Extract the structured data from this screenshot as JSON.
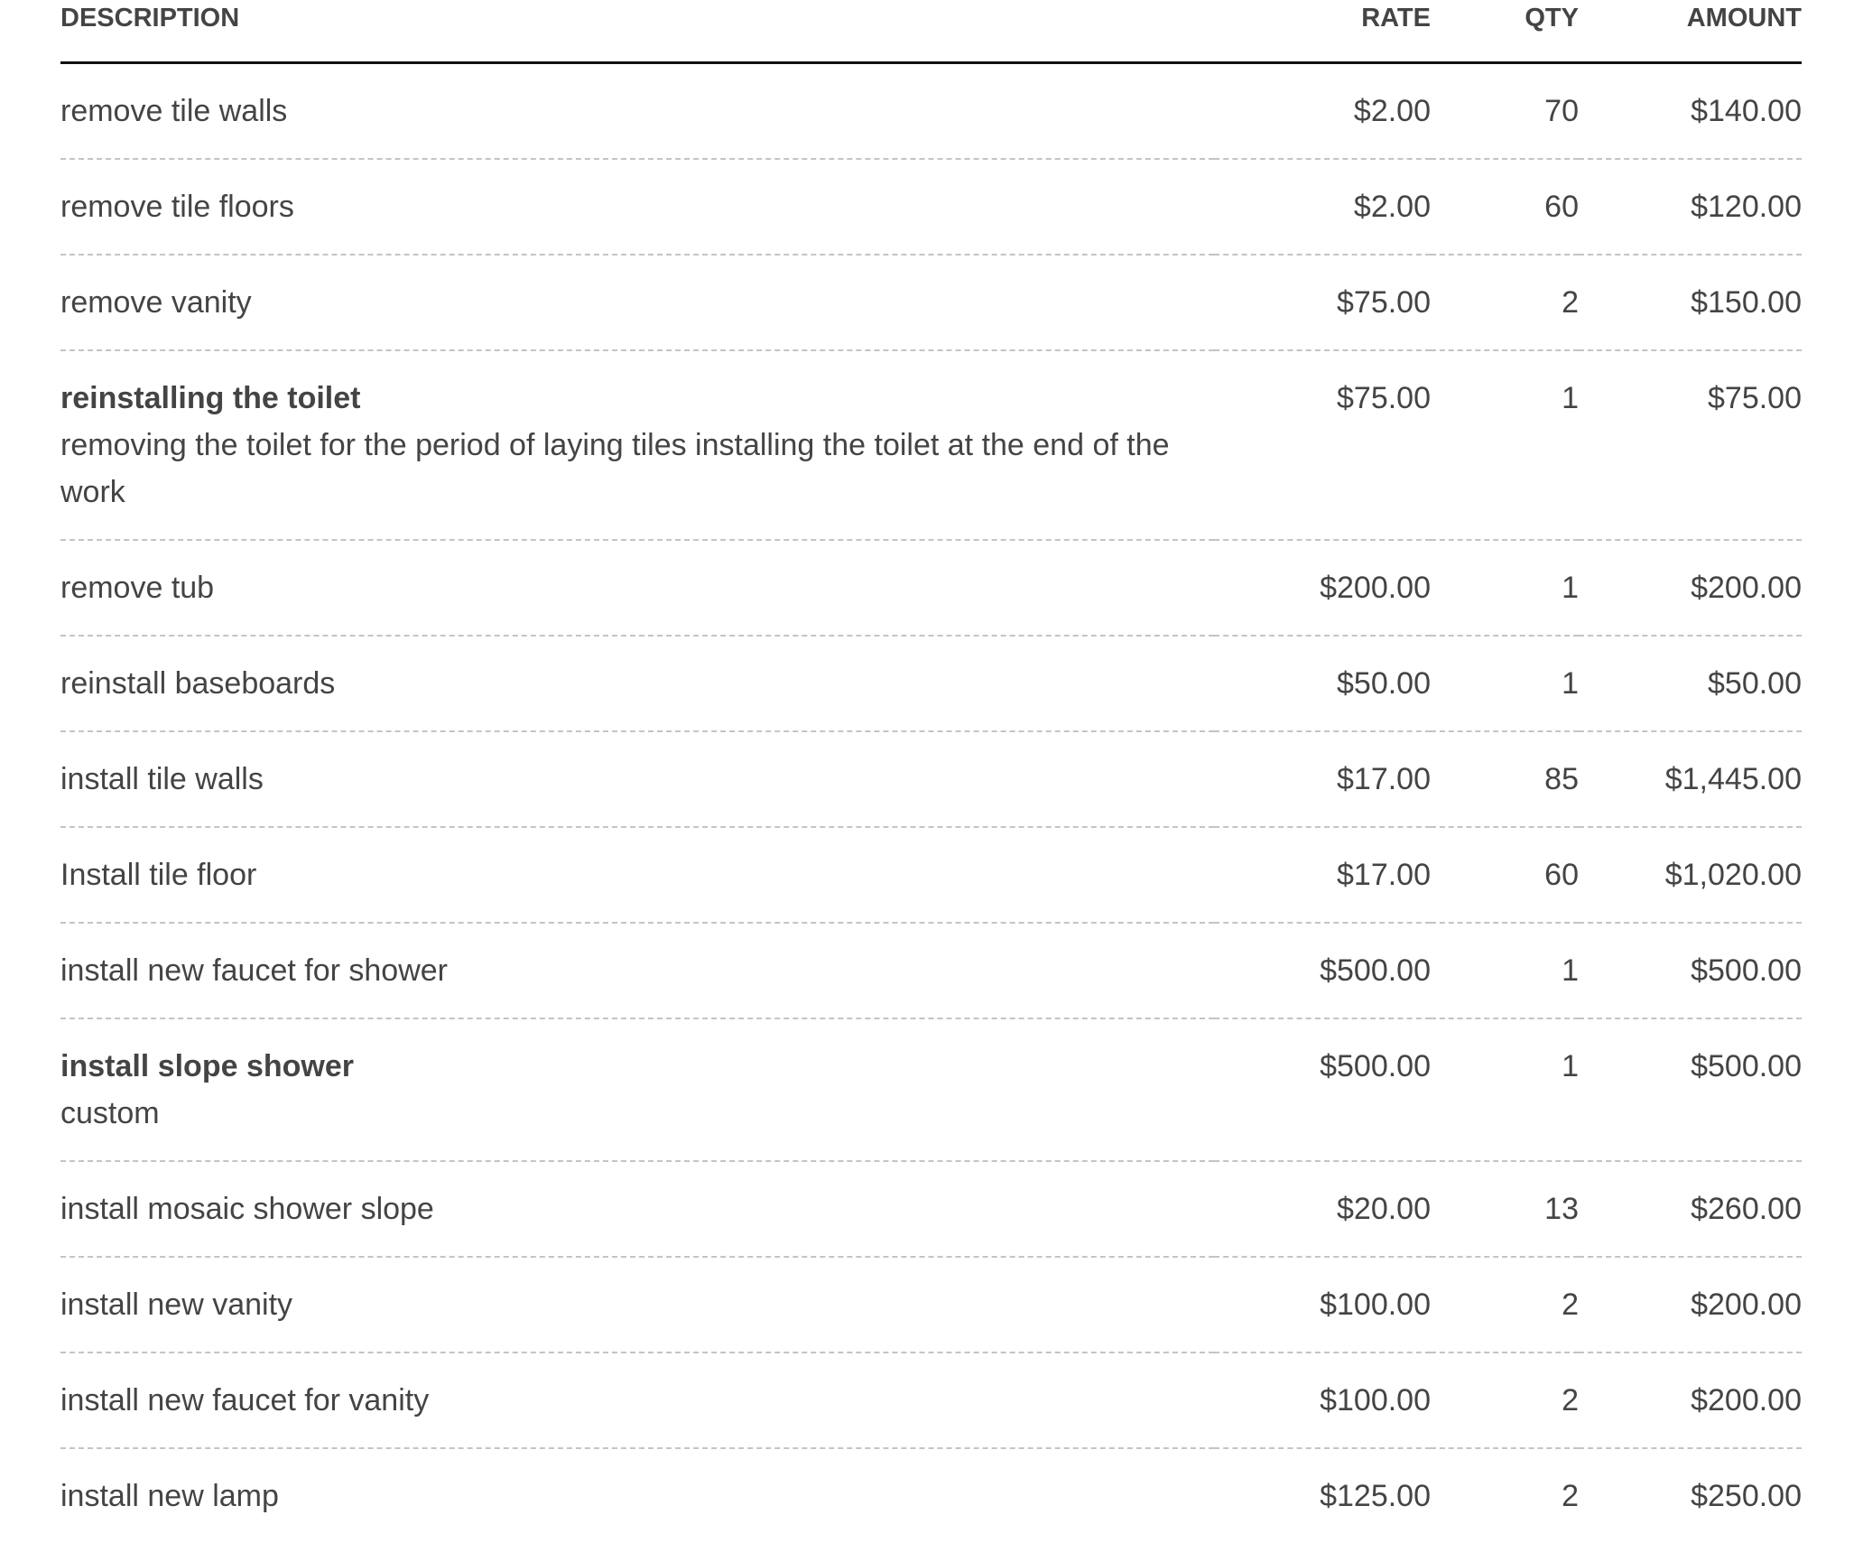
{
  "headers": {
    "description": "DESCRIPTION",
    "rate": "RATE",
    "qty": "QTY",
    "amount": "AMOUNT"
  },
  "items": [
    {
      "name": "remove tile walls",
      "detail": "",
      "bold": false,
      "rate": "$2.00",
      "qty": "70",
      "amount": "$140.00"
    },
    {
      "name": "remove tile floors",
      "detail": "",
      "bold": false,
      "rate": "$2.00",
      "qty": "60",
      "amount": "$120.00"
    },
    {
      "name": "remove vanity",
      "detail": "",
      "bold": false,
      "rate": "$75.00",
      "qty": "2",
      "amount": "$150.00"
    },
    {
      "name": "reinstalling the toilet",
      "detail": "removing the toilet for the period of laying tiles installing the toilet at the end of the work",
      "bold": true,
      "rate": "$75.00",
      "qty": "1",
      "amount": "$75.00"
    },
    {
      "name": "remove tub",
      "detail": "",
      "bold": false,
      "rate": "$200.00",
      "qty": "1",
      "amount": "$200.00"
    },
    {
      "name": "reinstall baseboards",
      "detail": "",
      "bold": false,
      "rate": "$50.00",
      "qty": "1",
      "amount": "$50.00"
    },
    {
      "name": "install tile walls",
      "detail": "",
      "bold": false,
      "rate": "$17.00",
      "qty": "85",
      "amount": "$1,445.00"
    },
    {
      "name": "Install tile floor",
      "detail": "",
      "bold": false,
      "rate": "$17.00",
      "qty": "60",
      "amount": "$1,020.00"
    },
    {
      "name": "install new faucet for shower",
      "detail": "",
      "bold": false,
      "rate": "$500.00",
      "qty": "1",
      "amount": "$500.00"
    },
    {
      "name": "install slope shower",
      "detail": "custom",
      "bold": true,
      "rate": "$500.00",
      "qty": "1",
      "amount": "$500.00"
    },
    {
      "name": "install mosaic shower slope",
      "detail": "",
      "bold": false,
      "rate": "$20.00",
      "qty": "13",
      "amount": "$260.00"
    },
    {
      "name": "install new vanity",
      "detail": "",
      "bold": false,
      "rate": "$100.00",
      "qty": "2",
      "amount": "$200.00"
    },
    {
      "name": "install new faucet for vanity",
      "detail": "",
      "bold": false,
      "rate": "$100.00",
      "qty": "2",
      "amount": "$200.00"
    },
    {
      "name": "install new lamp",
      "detail": "",
      "bold": false,
      "rate": "$125.00",
      "qty": "2",
      "amount": "$250.00"
    }
  ]
}
